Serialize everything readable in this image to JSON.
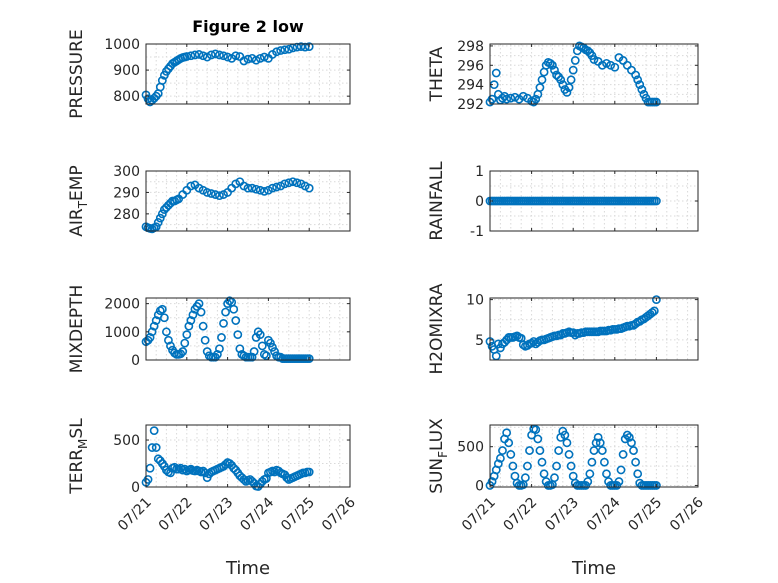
{
  "colors": {
    "marker": "#0072bd",
    "axis": "#262626",
    "grid": "#d9d9d9"
  },
  "chart_data": [
    {
      "type": "scatter",
      "title": "Figure 2 low",
      "ylabel": "PRESSURE",
      "ylabel_sub": "",
      "xlabel": "",
      "ylim": [
        770,
        1000
      ],
      "yticks": [
        "800",
        "900",
        "1000"
      ],
      "ytick_values": [
        800,
        900,
        1000
      ],
      "xlim": [
        0,
        5
      ],
      "xticks": [
        "07/21",
        "07/22",
        "07/23",
        "07/24",
        "07/25",
        "07/26"
      ],
      "show_xticklabels": false,
      "grid": true,
      "x": [
        0,
        0.05,
        0.1,
        0.15,
        0.2,
        0.25,
        0.3,
        0.35,
        0.4,
        0.45,
        0.5,
        0.55,
        0.6,
        0.65,
        0.7,
        0.75,
        0.8,
        0.85,
        0.9,
        0.95,
        1,
        1.1,
        1.2,
        1.3,
        1.4,
        1.5,
        1.6,
        1.7,
        1.8,
        1.9,
        2,
        2.1,
        2.2,
        2.3,
        2.4,
        2.5,
        2.6,
        2.7,
        2.8,
        2.9,
        3,
        3.1,
        3.2,
        3.3,
        3.4,
        3.5,
        3.6,
        3.7,
        3.8,
        3.9,
        4
      ],
      "y": [
        805,
        790,
        778,
        785,
        792,
        800,
        810,
        835,
        860,
        880,
        895,
        905,
        915,
        925,
        930,
        935,
        940,
        945,
        948,
        950,
        952,
        955,
        958,
        960,
        955,
        950,
        958,
        962,
        958,
        955,
        950,
        945,
        955,
        952,
        935,
        942,
        945,
        938,
        945,
        950,
        945,
        960,
        970,
        975,
        978,
        980,
        985,
        988,
        990,
        988,
        990
      ]
    },
    {
      "type": "scatter",
      "title": "",
      "ylabel": "THETA",
      "ylabel_sub": "",
      "xlabel": "",
      "ylim": [
        292,
        298.2
      ],
      "yticks": [
        "292",
        "294",
        "296",
        "298"
      ],
      "ytick_values": [
        292,
        294,
        296,
        298
      ],
      "xlim": [
        0,
        5
      ],
      "xticks": [
        "07/21",
        "07/22",
        "07/23",
        "07/24",
        "07/25",
        "07/26"
      ],
      "show_xticklabels": false,
      "grid": true,
      "x": [
        0,
        0.05,
        0.1,
        0.15,
        0.2,
        0.25,
        0.3,
        0.35,
        0.4,
        0.5,
        0.6,
        0.7,
        0.8,
        0.9,
        1,
        1.05,
        1.1,
        1.15,
        1.2,
        1.25,
        1.3,
        1.35,
        1.4,
        1.45,
        1.5,
        1.55,
        1.6,
        1.65,
        1.7,
        1.75,
        1.8,
        1.85,
        1.9,
        1.95,
        2,
        2.05,
        2.1,
        2.15,
        2.2,
        2.25,
        2.3,
        2.35,
        2.4,
        2.45,
        2.5,
        2.6,
        2.7,
        2.8,
        2.9,
        3,
        3.1,
        3.2,
        3.3,
        3.4,
        3.5,
        3.55,
        3.6,
        3.65,
        3.7,
        3.75,
        3.8,
        3.85,
        3.9,
        3.95,
        4
      ],
      "y": [
        292.2,
        292.5,
        294,
        295.2,
        293,
        292.4,
        292.6,
        292.8,
        292.5,
        292.6,
        292.7,
        292.5,
        292.8,
        292.6,
        292.3,
        292.2,
        292.5,
        293,
        293.7,
        294.5,
        295.3,
        296,
        296.3,
        296.2,
        296,
        295.5,
        295,
        294.8,
        294.5,
        294,
        293.5,
        293.2,
        293.7,
        294.5,
        295.5,
        296.5,
        297.5,
        298,
        297.9,
        297.8,
        297.6,
        297.5,
        297.3,
        297,
        296.6,
        296.4,
        296,
        296.2,
        296,
        295.8,
        296.8,
        296.5,
        296,
        295.5,
        295,
        294.5,
        294,
        293.5,
        293,
        292.6,
        292.2,
        292.2,
        292.2,
        292.2,
        292.2
      ]
    },
    {
      "type": "scatter",
      "title": "",
      "ylabel": "AIR",
      "ylabel_sub": "T",
      "ylabel_after": "EMP",
      "xlabel": "",
      "ylim": [
        272,
        300
      ],
      "yticks": [
        "280",
        "290",
        "300"
      ],
      "ytick_values": [
        280,
        290,
        300
      ],
      "xlim": [
        0,
        5
      ],
      "xticks": [
        "07/21",
        "07/22",
        "07/23",
        "07/24",
        "07/25",
        "07/26"
      ],
      "show_xticklabels": false,
      "grid": true,
      "x": [
        0,
        0.05,
        0.1,
        0.15,
        0.2,
        0.25,
        0.3,
        0.35,
        0.4,
        0.45,
        0.5,
        0.55,
        0.6,
        0.65,
        0.7,
        0.75,
        0.8,
        0.9,
        1,
        1.1,
        1.2,
        1.3,
        1.4,
        1.5,
        1.6,
        1.7,
        1.8,
        1.9,
        2,
        2.1,
        2.2,
        2.3,
        2.4,
        2.5,
        2.6,
        2.7,
        2.8,
        2.9,
        3,
        3.1,
        3.2,
        3.3,
        3.4,
        3.5,
        3.6,
        3.7,
        3.8,
        3.9,
        4
      ],
      "y": [
        274,
        273.5,
        273.2,
        273,
        273.5,
        274,
        276,
        278,
        280,
        282,
        283,
        284,
        285,
        286,
        286,
        286.5,
        287,
        289,
        291,
        293,
        293.5,
        292,
        291,
        290,
        289.5,
        289,
        288.5,
        289,
        290,
        292,
        294,
        295,
        293,
        292,
        292,
        291.5,
        291,
        290.5,
        291,
        292,
        292.5,
        293,
        294,
        294.5,
        295,
        294.5,
        294,
        293,
        292
      ]
    },
    {
      "type": "scatter",
      "title": "",
      "ylabel": "RAINFALL",
      "ylabel_sub": "",
      "xlabel": "",
      "ylim": [
        -1,
        1
      ],
      "yticks": [
        "-1",
        "0",
        "1"
      ],
      "ytick_values": [
        -1,
        0,
        1
      ],
      "xlim": [
        0,
        5
      ],
      "xticks": [
        "07/21",
        "07/22",
        "07/23",
        "07/24",
        "07/25",
        "07/26"
      ],
      "show_xticklabels": false,
      "grid": true,
      "x": [
        0,
        0.05,
        0.1,
        0.15,
        0.2,
        0.25,
        0.3,
        0.35,
        0.4,
        0.45,
        0.5,
        0.55,
        0.6,
        0.65,
        0.7,
        0.75,
        0.8,
        0.85,
        0.9,
        0.95,
        1,
        1.05,
        1.1,
        1.15,
        1.2,
        1.25,
        1.3,
        1.35,
        1.4,
        1.45,
        1.5,
        1.55,
        1.6,
        1.65,
        1.7,
        1.75,
        1.8,
        1.85,
        1.9,
        1.95,
        2,
        2.05,
        2.1,
        2.15,
        2.2,
        2.25,
        2.3,
        2.35,
        2.4,
        2.45,
        2.5,
        2.55,
        2.6,
        2.65,
        2.7,
        2.75,
        2.8,
        2.85,
        2.9,
        2.95,
        3,
        3.05,
        3.1,
        3.15,
        3.2,
        3.25,
        3.3,
        3.35,
        3.4,
        3.45,
        3.5,
        3.55,
        3.6,
        3.65,
        3.7,
        3.75,
        3.8,
        3.85,
        3.9,
        3.95,
        4
      ],
      "y": [
        0,
        0,
        0,
        0,
        0,
        0,
        0,
        0,
        0,
        0,
        0,
        0,
        0,
        0,
        0,
        0,
        0,
        0,
        0,
        0,
        0,
        0,
        0,
        0,
        0,
        0,
        0,
        0,
        0,
        0,
        0,
        0,
        0,
        0,
        0,
        0,
        0,
        0,
        0,
        0,
        0,
        0,
        0,
        0,
        0,
        0,
        0,
        0,
        0,
        0,
        0,
        0,
        0,
        0,
        0,
        0,
        0,
        0,
        0,
        0,
        0,
        0,
        0,
        0,
        0,
        0,
        0,
        0,
        0,
        0,
        0,
        0,
        0,
        0,
        0,
        0,
        0,
        0,
        0,
        0,
        0
      ]
    },
    {
      "type": "scatter",
      "title": "",
      "ylabel": "MIXDEPTH",
      "ylabel_sub": "",
      "xlabel": "",
      "ylim": [
        0,
        2200
      ],
      "yticks": [
        "0",
        "1000",
        "2000"
      ],
      "ytick_values": [
        0,
        1000,
        2000
      ],
      "xlim": [
        0,
        5
      ],
      "xticks": [
        "07/21",
        "07/22",
        "07/23",
        "07/24",
        "07/25",
        "07/26"
      ],
      "show_xticklabels": false,
      "grid": true,
      "x": [
        0,
        0.05,
        0.1,
        0.15,
        0.2,
        0.25,
        0.3,
        0.35,
        0.4,
        0.45,
        0.5,
        0.55,
        0.6,
        0.65,
        0.7,
        0.75,
        0.8,
        0.85,
        0.9,
        0.95,
        1,
        1.05,
        1.1,
        1.15,
        1.2,
        1.25,
        1.3,
        1.35,
        1.4,
        1.45,
        1.5,
        1.55,
        1.6,
        1.65,
        1.7,
        1.75,
        1.8,
        1.85,
        1.9,
        1.95,
        2,
        2.05,
        2.1,
        2.15,
        2.2,
        2.25,
        2.3,
        2.35,
        2.4,
        2.45,
        2.5,
        2.55,
        2.6,
        2.65,
        2.7,
        2.75,
        2.8,
        2.85,
        2.9,
        2.95,
        3,
        3.05,
        3.1,
        3.15,
        3.2,
        3.25,
        3.3,
        3.35,
        3.4,
        3.45,
        3.5,
        3.55,
        3.6,
        3.65,
        3.7,
        3.75,
        3.8,
        3.85,
        3.9,
        3.95,
        4
      ],
      "y": [
        650,
        700,
        800,
        1000,
        1200,
        1400,
        1600,
        1750,
        1800,
        1500,
        1000,
        700,
        500,
        350,
        250,
        200,
        200,
        220,
        300,
        600,
        900,
        1200,
        1400,
        1600,
        1800,
        1900,
        2000,
        1700,
        1200,
        700,
        300,
        150,
        100,
        100,
        100,
        200,
        400,
        800,
        1300,
        1700,
        2000,
        2100,
        2050,
        1800,
        1400,
        900,
        400,
        200,
        150,
        100,
        100,
        100,
        100,
        300,
        800,
        1000,
        900,
        500,
        200,
        150,
        700,
        600,
        450,
        300,
        150,
        100,
        100,
        50,
        50,
        50,
        50,
        50,
        50,
        50,
        50,
        50,
        50,
        50,
        50,
        50,
        50
      ]
    },
    {
      "type": "scatter",
      "title": "",
      "ylabel": "H2OMIXRA",
      "ylabel_sub": "",
      "xlabel": "",
      "ylim": [
        2.5,
        10.2
      ],
      "yticks": [
        "5",
        "10"
      ],
      "ytick_values": [
        5,
        10
      ],
      "xlim": [
        0,
        5
      ],
      "xticks": [
        "07/21",
        "07/22",
        "07/23",
        "07/24",
        "07/25",
        "07/26"
      ],
      "show_xticklabels": false,
      "grid": true,
      "x": [
        0,
        0.05,
        0.1,
        0.15,
        0.2,
        0.25,
        0.3,
        0.35,
        0.4,
        0.45,
        0.5,
        0.55,
        0.6,
        0.65,
        0.7,
        0.75,
        0.8,
        0.85,
        0.9,
        0.95,
        1,
        1.05,
        1.1,
        1.15,
        1.2,
        1.25,
        1.3,
        1.35,
        1.4,
        1.45,
        1.5,
        1.55,
        1.6,
        1.65,
        1.7,
        1.75,
        1.8,
        1.85,
        1.9,
        1.95,
        2,
        2.05,
        2.1,
        2.15,
        2.2,
        2.25,
        2.3,
        2.35,
        2.4,
        2.45,
        2.5,
        2.55,
        2.6,
        2.65,
        2.7,
        2.75,
        2.8,
        2.85,
        2.9,
        2.95,
        3,
        3.05,
        3.1,
        3.15,
        3.2,
        3.25,
        3.3,
        3.35,
        3.4,
        3.45,
        3.5,
        3.55,
        3.6,
        3.65,
        3.7,
        3.75,
        3.8,
        3.85,
        3.9,
        3.95,
        4
      ],
      "y": [
        4.8,
        4.2,
        3.8,
        3,
        4.5,
        4,
        4.5,
        4.7,
        5,
        5.3,
        5.3,
        5.3,
        5.4,
        5.5,
        5.3,
        5.2,
        4.4,
        4.2,
        4.3,
        4.5,
        4.6,
        4.8,
        4.5,
        4.7,
        4.9,
        5,
        5,
        5.1,
        5.2,
        5.3,
        5.4,
        5.5,
        5.5,
        5.6,
        5.6,
        5.8,
        5.8,
        5.9,
        6,
        5.9,
        5.9,
        5.6,
        5.8,
        5.8,
        5.9,
        5.9,
        6,
        6,
        6,
        6,
        6,
        6,
        6,
        6.1,
        6.1,
        6.1,
        6.1,
        6.2,
        6.2,
        6.3,
        6.3,
        6.3,
        6.4,
        6.4,
        6.5,
        6.6,
        6.7,
        6.7,
        6.8,
        6.8,
        7,
        7.2,
        7.3,
        7.5,
        7.6,
        7.8,
        8,
        8.2,
        8.4,
        8.6,
        10
      ]
    },
    {
      "type": "scatter",
      "title": "",
      "ylabel": "TERR",
      "ylabel_sub": "M",
      "ylabel_after": "SL",
      "xlabel": "Time",
      "ylim": [
        0,
        660
      ],
      "yticks": [
        "0",
        "500"
      ],
      "ytick_values": [
        0,
        500
      ],
      "xlim": [
        0,
        5
      ],
      "xticks": [
        "07/21",
        "07/22",
        "07/23",
        "07/24",
        "07/25",
        "07/26"
      ],
      "show_xticklabels": true,
      "grid": true,
      "x": [
        0,
        0.05,
        0.1,
        0.15,
        0.2,
        0.25,
        0.3,
        0.35,
        0.4,
        0.45,
        0.5,
        0.55,
        0.6,
        0.65,
        0.7,
        0.75,
        0.8,
        0.85,
        0.9,
        0.95,
        1,
        1.05,
        1.1,
        1.15,
        1.2,
        1.25,
        1.3,
        1.35,
        1.4,
        1.45,
        1.5,
        1.55,
        1.6,
        1.65,
        1.7,
        1.75,
        1.8,
        1.85,
        1.9,
        1.95,
        2,
        2.05,
        2.1,
        2.15,
        2.2,
        2.25,
        2.3,
        2.35,
        2.4,
        2.45,
        2.5,
        2.55,
        2.6,
        2.65,
        2.7,
        2.75,
        2.8,
        2.85,
        2.9,
        2.95,
        3,
        3.05,
        3.1,
        3.15,
        3.2,
        3.25,
        3.3,
        3.35,
        3.4,
        3.45,
        3.5,
        3.55,
        3.6,
        3.65,
        3.7,
        3.75,
        3.8,
        3.85,
        3.9,
        3.95,
        4
      ],
      "y": [
        50,
        80,
        200,
        420,
        600,
        420,
        300,
        280,
        250,
        220,
        180,
        160,
        150,
        200,
        210,
        190,
        190,
        200,
        180,
        190,
        170,
        180,
        190,
        175,
        170,
        180,
        170,
        160,
        170,
        150,
        100,
        140,
        160,
        170,
        180,
        190,
        200,
        210,
        220,
        240,
        260,
        250,
        230,
        200,
        180,
        150,
        120,
        100,
        80,
        60,
        70,
        80,
        60,
        40,
        10,
        5,
        30,
        60,
        80,
        90,
        150,
        160,
        170,
        160,
        180,
        170,
        150,
        140,
        130,
        100,
        80,
        90,
        100,
        110,
        120,
        130,
        140,
        150,
        150,
        160,
        160
      ]
    },
    {
      "type": "scatter",
      "title": "",
      "ylabel": "SUN",
      "ylabel_sub": "F",
      "ylabel_after": "LUX",
      "xlabel": "Time",
      "ylim": [
        -20,
        780
      ],
      "yticks": [
        "0",
        "500"
      ],
      "ytick_values": [
        0,
        500
      ],
      "xlim": [
        0,
        5
      ],
      "xticks": [
        "07/21",
        "07/22",
        "07/23",
        "07/24",
        "07/25",
        "07/26"
      ],
      "show_xticklabels": true,
      "grid": true,
      "x": [
        0,
        0.05,
        0.1,
        0.15,
        0.2,
        0.25,
        0.3,
        0.35,
        0.4,
        0.45,
        0.5,
        0.55,
        0.6,
        0.65,
        0.7,
        0.75,
        0.8,
        0.85,
        0.9,
        0.95,
        1,
        1.05,
        1.1,
        1.15,
        1.2,
        1.25,
        1.3,
        1.35,
        1.4,
        1.45,
        1.5,
        1.55,
        1.6,
        1.65,
        1.7,
        1.75,
        1.8,
        1.85,
        1.9,
        1.95,
        2,
        2.05,
        2.1,
        2.15,
        2.2,
        2.25,
        2.3,
        2.35,
        2.4,
        2.45,
        2.5,
        2.55,
        2.6,
        2.65,
        2.7,
        2.75,
        2.8,
        2.85,
        2.9,
        2.95,
        3,
        3.05,
        3.1,
        3.15,
        3.2,
        3.25,
        3.3,
        3.35,
        3.4,
        3.45,
        3.5,
        3.55,
        3.6,
        3.65,
        3.7,
        3.75,
        3.8,
        3.85,
        3.9,
        3.95,
        4
      ],
      "y": [
        0,
        50,
        120,
        200,
        280,
        350,
        450,
        600,
        680,
        550,
        400,
        250,
        120,
        30,
        0,
        0,
        10,
        100,
        250,
        450,
        650,
        730,
        720,
        600,
        450,
        300,
        150,
        50,
        0,
        0,
        10,
        100,
        250,
        450,
        620,
        700,
        650,
        550,
        400,
        250,
        120,
        30,
        0,
        0,
        0,
        0,
        0,
        50,
        150,
        300,
        450,
        550,
        620,
        550,
        450,
        300,
        150,
        50,
        0,
        0,
        0,
        0,
        50,
        200,
        400,
        600,
        650,
        620,
        550,
        450,
        300,
        150,
        30,
        0,
        0,
        0,
        0,
        0,
        0,
        0,
        0
      ]
    }
  ]
}
